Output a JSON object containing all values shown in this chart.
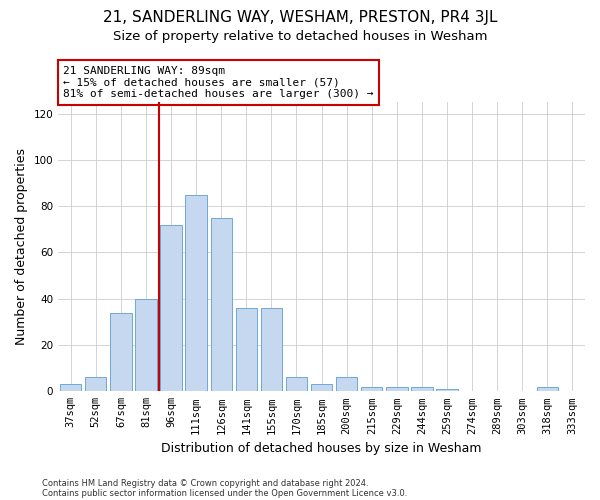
{
  "title": "21, SANDERLING WAY, WESHAM, PRESTON, PR4 3JL",
  "subtitle": "Size of property relative to detached houses in Wesham",
  "xlabel": "Distribution of detached houses by size in Wesham",
  "ylabel": "Number of detached properties",
  "footnote1": "Contains HM Land Registry data © Crown copyright and database right 2024.",
  "footnote2": "Contains public sector information licensed under the Open Government Licence v3.0.",
  "categories": [
    "37sqm",
    "52sqm",
    "67sqm",
    "81sqm",
    "96sqm",
    "111sqm",
    "126sqm",
    "141sqm",
    "155sqm",
    "170sqm",
    "185sqm",
    "200sqm",
    "215sqm",
    "229sqm",
    "244sqm",
    "259sqm",
    "274sqm",
    "289sqm",
    "303sqm",
    "318sqm",
    "333sqm"
  ],
  "values": [
    3,
    6,
    34,
    40,
    72,
    85,
    75,
    36,
    36,
    6,
    3,
    6,
    2,
    2,
    2,
    1,
    0,
    0,
    0,
    2,
    0
  ],
  "bar_color": "#c5d8f0",
  "bar_edge_color": "#6fa8d6",
  "vline_x_index": 3.5,
  "vline_color": "#cc0000",
  "annotation_text": "21 SANDERLING WAY: 89sqm\n← 15% of detached houses are smaller (57)\n81% of semi-detached houses are larger (300) →",
  "annotation_box_color": "#ffffff",
  "annotation_box_edge": "#cc0000",
  "ylim": [
    0,
    125
  ],
  "yticks": [
    0,
    20,
    40,
    60,
    80,
    100,
    120
  ],
  "grid_color": "#cccccc",
  "background_color": "#ffffff",
  "title_fontsize": 11,
  "subtitle_fontsize": 9.5,
  "tick_fontsize": 7.5,
  "label_fontsize": 9
}
